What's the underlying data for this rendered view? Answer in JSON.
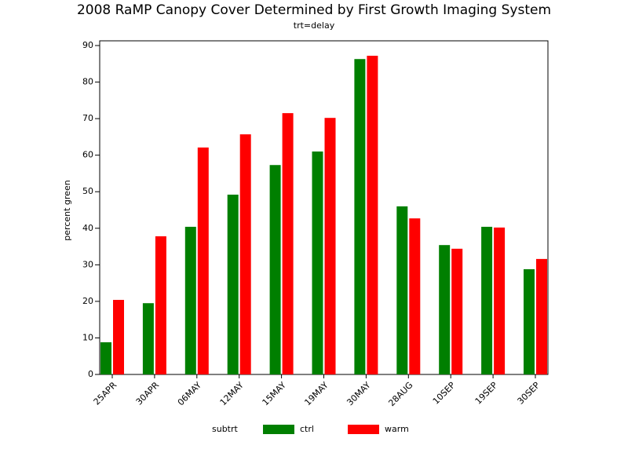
{
  "chart_data": {
    "type": "bar",
    "title": "2008 RaMP Canopy Cover Determined by First Growth Imaging System",
    "subtitle": "trt=delay",
    "y_label": "percent green",
    "legend_title": "subtrt",
    "categories": [
      "25APR",
      "30APR",
      "06MAY",
      "12MAY",
      "15MAY",
      "19MAY",
      "30MAY",
      "28AUG",
      "10SEP",
      "19SEP",
      "30SEP"
    ],
    "series": [
      {
        "name": "ctrl",
        "color": "#007f00",
        "values": [
          8.8,
          19.5,
          40.4,
          49.2,
          57.3,
          61.0,
          86.3,
          46.0,
          35.4,
          40.4,
          28.8
        ]
      },
      {
        "name": "warm",
        "color": "#ff0000",
        "values": [
          20.4,
          37.8,
          62.1,
          65.7,
          71.5,
          70.2,
          87.2,
          42.7,
          34.4,
          40.2,
          31.6
        ]
      }
    ],
    "ylim": [
      0,
      90
    ],
    "yticks": [
      0,
      10,
      20,
      30,
      40,
      50,
      60,
      70,
      80,
      90
    ],
    "legend_position": "bottom"
  }
}
